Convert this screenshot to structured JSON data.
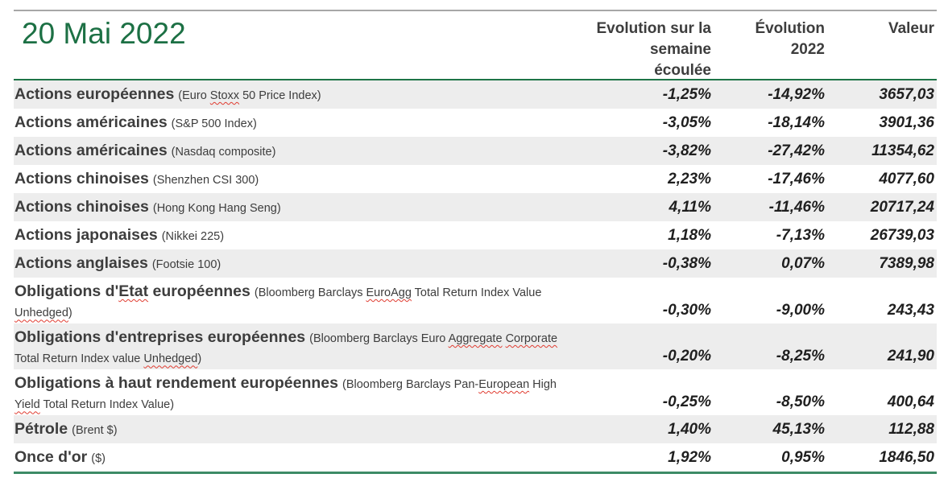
{
  "title": "20 Mai 2022",
  "columns": {
    "week": "Evolution sur la\nsemaine\nécoulée",
    "ytd": "Évolution\n2022",
    "value": "Valeur"
  },
  "colors": {
    "title_green": "#1c7044",
    "divider_green": "#1e7447",
    "bottom_divider_green": "#3d8b66",
    "top_divider_gray": "#a7a7a7",
    "row_stripe": "#ededed",
    "spellcheck_red": "#e03c31",
    "label_text": "#3d3d3d",
    "value_text": "#1f1f1f"
  },
  "rows": [
    {
      "label": "Actions européennes",
      "note": "(Euro Stoxx 50 Price Index)",
      "misspelled": [
        "Stoxx"
      ],
      "week": "-1,25%",
      "ytd": "-14,92%",
      "value": "3657,03",
      "shaded": true,
      "tall": false
    },
    {
      "label": "Actions américaines",
      "note": "(S&P 500 Index)",
      "misspelled": [],
      "week": "-3,05%",
      "ytd": "-18,14%",
      "value": "3901,36",
      "shaded": false,
      "tall": false
    },
    {
      "label": "Actions américaines",
      "note": "(Nasdaq composite)",
      "misspelled": [],
      "week": "-3,82%",
      "ytd": "-27,42%",
      "value": "11354,62",
      "shaded": true,
      "tall": false
    },
    {
      "label": "Actions chinoises",
      "note": "(Shenzhen CSI 300)",
      "misspelled": [],
      "week": "2,23%",
      "ytd": "-17,46%",
      "value": "4077,60",
      "shaded": false,
      "tall": false
    },
    {
      "label": "Actions chinoises",
      "note": "(Hong Kong Hang Seng)",
      "misspelled": [],
      "week": "4,11%",
      "ytd": "-11,46%",
      "value": "20717,24",
      "shaded": true,
      "tall": false
    },
    {
      "label": "Actions japonaises",
      "note": "(Nikkei 225)",
      "misspelled": [],
      "week": "1,18%",
      "ytd": "-7,13%",
      "value": "26739,03",
      "shaded": false,
      "tall": false
    },
    {
      "label": "Actions anglaises",
      "note": "(Footsie 100)",
      "misspelled": [],
      "week": "-0,38%",
      "ytd": "0,07%",
      "value": "7389,98",
      "shaded": true,
      "tall": false
    },
    {
      "label": "Obligations d'Etat européennes",
      "note": "(Bloomberg Barclays EuroAgg Total Return Index Value Unhedged)",
      "misspelled": [
        "Etat",
        "EuroAgg",
        "Unhedged"
      ],
      "week": "-0,30%",
      "ytd": "-9,00%",
      "value": "243,43",
      "shaded": false,
      "tall": true
    },
    {
      "label": "Obligations d'entreprises européennes",
      "note": "(Bloomberg Barclays Euro Aggregate Corporate Total Return Index value Unhedged)",
      "misspelled": [
        "Aggregate",
        "Corporate",
        "Unhedged"
      ],
      "week": "-0,20%",
      "ytd": "-8,25%",
      "value": "241,90",
      "shaded": true,
      "tall": true
    },
    {
      "label": "Obligations à haut rendement européennes",
      "note": "(Bloomberg Barclays Pan-European High Yield Total Return Index Value)",
      "misspelled": [
        "European",
        "Yield"
      ],
      "week": "-0,25%",
      "ytd": "-8,50%",
      "value": "400,64",
      "shaded": false,
      "tall": true
    },
    {
      "label": "Pétrole",
      "note": "(Brent $)",
      "misspelled": [],
      "week": "1,40%",
      "ytd": "45,13%",
      "value": "112,88",
      "shaded": true,
      "tall": false
    },
    {
      "label": "Once d'or",
      "note": "($)",
      "misspelled": [],
      "week": "1,92%",
      "ytd": "0,95%",
      "value": "1846,50",
      "shaded": false,
      "tall": false
    }
  ]
}
